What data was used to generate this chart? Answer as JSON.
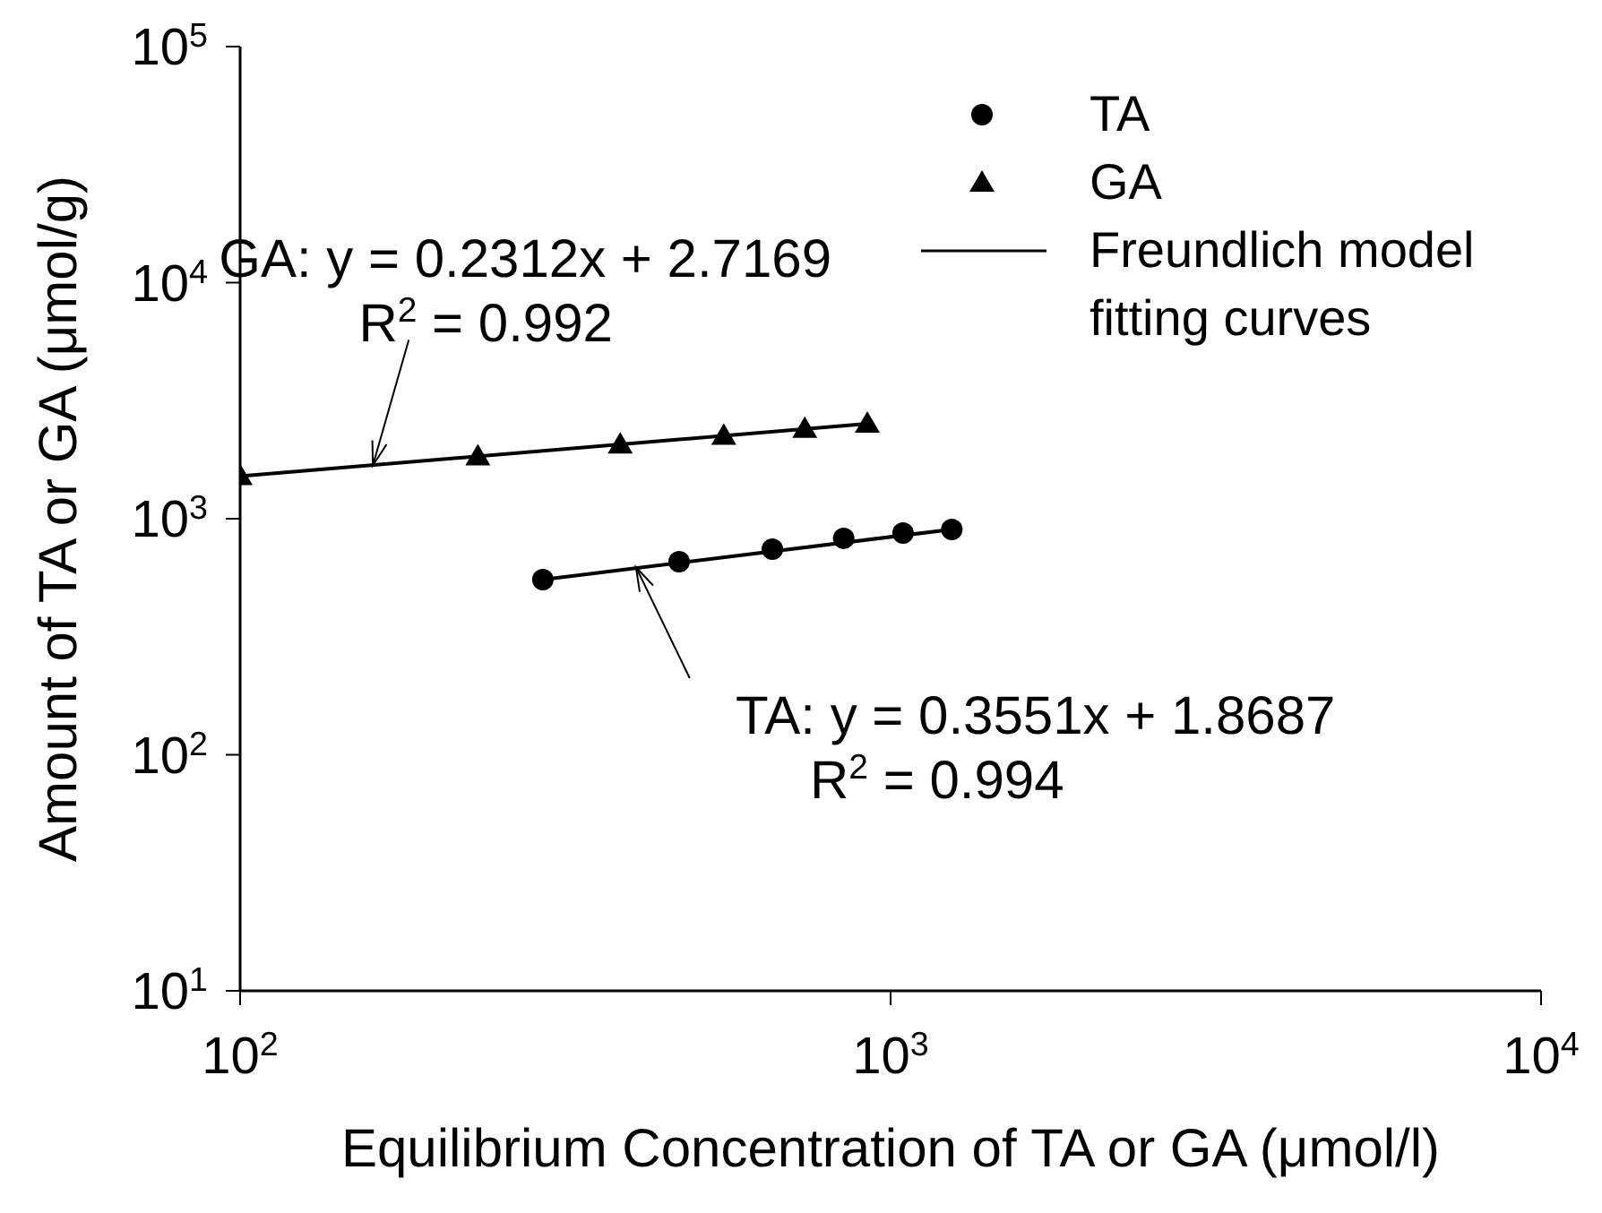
{
  "chart_data": {
    "type": "scatter",
    "xlabel": "Equilibrium Concentration of TA or GA (μmol/l)",
    "ylabel": "Amount of TA or GA (μmol/g)",
    "log": "xy",
    "xlim": [
      100,
      10000
    ],
    "xticks": [
      {
        "value": 100,
        "label": "10$^{2}$"
      },
      {
        "value": 1000,
        "label": "10$^{3}$"
      },
      {
        "value": 10000,
        "label": "10$^{4}$"
      }
    ],
    "ylim": [
      10,
      100000
    ],
    "yticks": [
      {
        "value": 10,
        "label": "10$^{1}$"
      },
      {
        "value": 100,
        "label": "10$^{2}$"
      },
      {
        "value": 1000,
        "label": "10$^{3}$"
      },
      {
        "value": 10000,
        "label": "10$^{4}$"
      },
      {
        "value": 100000,
        "label": "10$^{5}$"
      }
    ],
    "legend": "top right",
    "series": [
      {
        "name": "TA",
        "marker": "circle",
        "color": "#000000",
        "x": [
          292,
          473,
          658,
          847,
          1045,
          1242
        ],
        "values": [
          552,
          658,
          743,
          826,
          869,
          901
        ]
      },
      {
        "name": "GA",
        "marker": "triangle",
        "color": "#000000",
        "x": [
          100,
          232,
          384,
          554,
          738,
          921
        ],
        "values": [
          1514,
          1836,
          2063,
          2246,
          2399,
          2525
        ]
      },
      {
        "name": "Freundlich model fitting curves",
        "type": "line",
        "color": "#000000",
        "x": [
          292,
          1242
        ],
        "values": [
          552,
          901
        ]
      },
      {
        "type": "line",
        "color": "#000000",
        "x": [
          100,
          921
        ],
        "values": [
          1514,
          2525
        ]
      }
    ],
    "annotations": [
      {
        "text": "GA: y = 0.2312x + 2.7169\nR$^{2}$ = 0.992",
        "x": 160,
        "y": 1683
      },
      {
        "text": "TA: y = 0.3551x + 1.8687\nR$^{2}$ = 0.994",
        "x": 406,
        "y": 624
      }
    ]
  }
}
